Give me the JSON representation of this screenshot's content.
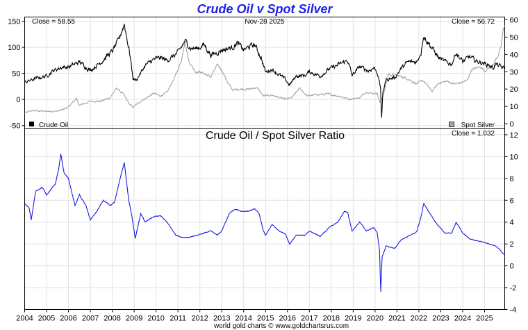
{
  "page": {
    "title": "Crude Oil v Spot Silver",
    "footer": "world gold charts © www.goldchartsrus.com",
    "colors": {
      "title": "#1e22e6",
      "crude": "#000000",
      "silver": "#a5a5a5",
      "ratio": "#1a1ae6"
    }
  },
  "top_panel": {
    "close_left": "Close = 58.55",
    "date": "Nov-28  2025",
    "close_right": "Close = 56.72",
    "legend_left": "Crude Oil",
    "legend_right": "Spot Silver"
  },
  "bottom_panel": {
    "title": "Crude Oil  /  Spot Silver Ratio",
    "close": "Close = 1.032"
  },
  "chart_data": [
    {
      "type": "line",
      "title": "Crude Oil v Spot Silver",
      "x_range": [
        2004.0,
        2025.92
      ],
      "x_ticks": [
        "2004",
        "2005",
        "2006",
        "2007",
        "2008",
        "2009",
        "2010",
        "2011",
        "2012",
        "2013",
        "2014",
        "2015",
        "2016",
        "2017",
        "2018",
        "2019",
        "2020",
        "2021",
        "2022",
        "2023",
        "2024",
        "2025"
      ],
      "y_left": {
        "label": "Crude Oil",
        "ylim": [
          -55,
          158
        ],
        "ticks": [
          "150",
          "100",
          "50",
          "0",
          "-50"
        ]
      },
      "y_right": {
        "label": "Spot Silver",
        "ylim": [
          -2.6,
          61.6
        ],
        "ticks": [
          "60",
          "50",
          "40",
          "30",
          "20",
          "10",
          "0"
        ]
      },
      "series": [
        {
          "name": "Crude Oil",
          "axis": "left",
          "points": [
            [
              2004.0,
              33
            ],
            [
              2004.5,
              40
            ],
            [
              2005.0,
              45
            ],
            [
              2005.3,
              55
            ],
            [
              2005.7,
              62
            ],
            [
              2006.0,
              62
            ],
            [
              2006.5,
              72
            ],
            [
              2007.0,
              56
            ],
            [
              2007.5,
              72
            ],
            [
              2007.8,
              85
            ],
            [
              2008.0,
              92
            ],
            [
              2008.3,
              115
            ],
            [
              2008.55,
              145
            ],
            [
              2008.8,
              88
            ],
            [
              2008.95,
              40
            ],
            [
              2009.1,
              37
            ],
            [
              2009.5,
              65
            ],
            [
              2009.9,
              77
            ],
            [
              2010.2,
              80
            ],
            [
              2010.5,
              75
            ],
            [
              2010.8,
              83
            ],
            [
              2011.0,
              90
            ],
            [
              2011.33,
              112
            ],
            [
              2011.6,
              98
            ],
            [
              2011.9,
              98
            ],
            [
              2012.2,
              105
            ],
            [
              2012.5,
              85
            ],
            [
              2012.8,
              90
            ],
            [
              2013.0,
              95
            ],
            [
              2013.5,
              100
            ],
            [
              2013.7,
              108
            ],
            [
              2014.0,
              95
            ],
            [
              2014.3,
              102
            ],
            [
              2014.5,
              105
            ],
            [
              2014.8,
              80
            ],
            [
              2015.0,
              52
            ],
            [
              2015.3,
              58
            ],
            [
              2015.6,
              48
            ],
            [
              2015.9,
              38
            ],
            [
              2016.1,
              28
            ],
            [
              2016.4,
              45
            ],
            [
              2016.8,
              46
            ],
            [
              2017.0,
              53
            ],
            [
              2017.5,
              45
            ],
            [
              2017.9,
              58
            ],
            [
              2018.3,
              66
            ],
            [
              2018.75,
              75
            ],
            [
              2018.95,
              46
            ],
            [
              2019.3,
              63
            ],
            [
              2019.7,
              55
            ],
            [
              2019.95,
              61
            ],
            [
              2020.1,
              52
            ],
            [
              2020.25,
              22
            ],
            [
              2020.3,
              -37
            ],
            [
              2020.36,
              15
            ],
            [
              2020.5,
              38
            ],
            [
              2020.9,
              42
            ],
            [
              2021.2,
              60
            ],
            [
              2021.5,
              72
            ],
            [
              2021.9,
              72
            ],
            [
              2022.1,
              90
            ],
            [
              2022.2,
              122
            ],
            [
              2022.5,
              105
            ],
            [
              2022.9,
              80
            ],
            [
              2023.2,
              72
            ],
            [
              2023.5,
              68
            ],
            [
              2023.7,
              90
            ],
            [
              2024.0,
              72
            ],
            [
              2024.3,
              82
            ],
            [
              2024.6,
              74
            ],
            [
              2024.9,
              70
            ],
            [
              2025.2,
              66
            ],
            [
              2025.4,
              60
            ],
            [
              2025.5,
              68
            ],
            [
              2025.92,
              58.55
            ]
          ]
        },
        {
          "name": "Spot Silver",
          "axis": "right",
          "points": [
            [
              2004.0,
              6
            ],
            [
              2004.3,
              7.5
            ],
            [
              2004.8,
              7.2
            ],
            [
              2005.5,
              7.2
            ],
            [
              2005.95,
              9
            ],
            [
              2006.35,
              14.5
            ],
            [
              2006.5,
              10.5
            ],
            [
              2007.0,
              13
            ],
            [
              2007.5,
              13
            ],
            [
              2007.9,
              15
            ],
            [
              2008.2,
              20.5
            ],
            [
              2008.5,
              17
            ],
            [
              2008.8,
              11
            ],
            [
              2008.95,
              9.5
            ],
            [
              2009.3,
              13
            ],
            [
              2009.9,
              17.5
            ],
            [
              2010.2,
              16
            ],
            [
              2010.5,
              18
            ],
            [
              2010.9,
              28
            ],
            [
              2011.15,
              36
            ],
            [
              2011.32,
              48
            ],
            [
              2011.5,
              36
            ],
            [
              2011.8,
              30
            ],
            [
              2012.0,
              30
            ],
            [
              2012.5,
              27
            ],
            [
              2012.8,
              34
            ],
            [
              2013.0,
              31
            ],
            [
              2013.3,
              23
            ],
            [
              2013.5,
              19.5
            ],
            [
              2013.9,
              20
            ],
            [
              2014.3,
              20
            ],
            [
              2014.6,
              21
            ],
            [
              2014.9,
              16
            ],
            [
              2015.3,
              16.5
            ],
            [
              2015.9,
              14
            ],
            [
              2016.2,
              15
            ],
            [
              2016.55,
              20.5
            ],
            [
              2016.9,
              16
            ],
            [
              2017.5,
              17
            ],
            [
              2017.9,
              17
            ],
            [
              2018.5,
              15.5
            ],
            [
              2018.8,
              14.2
            ],
            [
              2019.3,
              15
            ],
            [
              2019.6,
              18.5
            ],
            [
              2019.9,
              17.5
            ],
            [
              2020.1,
              17.8
            ],
            [
              2020.22,
              12
            ],
            [
              2020.4,
              17.5
            ],
            [
              2020.6,
              28.5
            ],
            [
              2021.1,
              27.5
            ],
            [
              2021.5,
              26
            ],
            [
              2021.9,
              23
            ],
            [
              2022.2,
              25
            ],
            [
              2022.6,
              18.5
            ],
            [
              2022.9,
              23.5
            ],
            [
              2023.3,
              24.5
            ],
            [
              2023.6,
              23
            ],
            [
              2023.9,
              23.5
            ],
            [
              2024.2,
              25
            ],
            [
              2024.4,
              31
            ],
            [
              2024.8,
              33
            ],
            [
              2025.0,
              30.5
            ],
            [
              2025.3,
              33
            ],
            [
              2025.6,
              38
            ],
            [
              2025.75,
              45
            ],
            [
              2025.85,
              54
            ],
            [
              2025.92,
              56.72
            ]
          ]
        }
      ]
    },
    {
      "type": "line",
      "title": "Crude Oil  /  Spot Silver Ratio",
      "x_range": [
        2004.0,
        2025.92
      ],
      "y_right": {
        "ylim": [
          -4,
          12.6
        ],
        "ticks": [
          "12",
          "10",
          "8",
          "6",
          "4",
          "2",
          "0",
          "-2",
          "-4"
        ]
      },
      "series": [
        {
          "name": "Crude Oil / Spot Silver Ratio",
          "points": [
            [
              2004.0,
              5.7
            ],
            [
              2004.2,
              5.3
            ],
            [
              2004.3,
              4.2
            ],
            [
              2004.5,
              6.8
            ],
            [
              2004.8,
              7.2
            ],
            [
              2005.0,
              6.5
            ],
            [
              2005.2,
              7.0
            ],
            [
              2005.4,
              7.5
            ],
            [
              2005.55,
              8.8
            ],
            [
              2005.65,
              10.2
            ],
            [
              2005.8,
              8.5
            ],
            [
              2006.0,
              8.0
            ],
            [
              2006.3,
              5.5
            ],
            [
              2006.5,
              6.5
            ],
            [
              2006.8,
              5.5
            ],
            [
              2007.0,
              4.2
            ],
            [
              2007.3,
              5.0
            ],
            [
              2007.6,
              6.0
            ],
            [
              2007.9,
              5.5
            ],
            [
              2008.1,
              5.8
            ],
            [
              2008.3,
              7.5
            ],
            [
              2008.55,
              9.5
            ],
            [
              2008.75,
              6.0
            ],
            [
              2008.9,
              4.5
            ],
            [
              2009.05,
              2.5
            ],
            [
              2009.3,
              4.8
            ],
            [
              2009.5,
              4.0
            ],
            [
              2009.9,
              4.5
            ],
            [
              2010.2,
              4.6
            ],
            [
              2010.5,
              4.0
            ],
            [
              2010.9,
              2.8
            ],
            [
              2011.2,
              2.6
            ],
            [
              2011.5,
              2.6
            ],
            [
              2011.9,
              2.8
            ],
            [
              2012.2,
              3.0
            ],
            [
              2012.5,
              3.2
            ],
            [
              2012.8,
              2.8
            ],
            [
              2013.0,
              3.2
            ],
            [
              2013.35,
              4.8
            ],
            [
              2013.6,
              5.2
            ],
            [
              2013.9,
              5.0
            ],
            [
              2014.2,
              5.0
            ],
            [
              2014.5,
              5.2
            ],
            [
              2014.7,
              4.8
            ],
            [
              2014.9,
              3.2
            ],
            [
              2015.0,
              2.8
            ],
            [
              2015.3,
              3.8
            ],
            [
              2015.6,
              3.2
            ],
            [
              2015.9,
              2.9
            ],
            [
              2016.1,
              2.0
            ],
            [
              2016.4,
              2.8
            ],
            [
              2016.8,
              2.8
            ],
            [
              2017.0,
              3.2
            ],
            [
              2017.5,
              2.7
            ],
            [
              2017.9,
              3.5
            ],
            [
              2018.3,
              4.0
            ],
            [
              2018.6,
              5.0
            ],
            [
              2018.75,
              4.9
            ],
            [
              2018.95,
              3.2
            ],
            [
              2019.3,
              4.0
            ],
            [
              2019.6,
              3.2
            ],
            [
              2019.95,
              3.5
            ],
            [
              2020.1,
              3.0
            ],
            [
              2020.2,
              1.5
            ],
            [
              2020.26,
              -2.4
            ],
            [
              2020.32,
              0.8
            ],
            [
              2020.5,
              1.8
            ],
            [
              2020.9,
              1.6
            ],
            [
              2021.2,
              2.4
            ],
            [
              2021.6,
              2.8
            ],
            [
              2021.9,
              3.1
            ],
            [
              2022.1,
              4.5
            ],
            [
              2022.22,
              5.7
            ],
            [
              2022.5,
              4.8
            ],
            [
              2022.9,
              3.6
            ],
            [
              2023.2,
              3.0
            ],
            [
              2023.5,
              3.0
            ],
            [
              2023.7,
              4.0
            ],
            [
              2024.0,
              3.0
            ],
            [
              2024.3,
              2.5
            ],
            [
              2024.6,
              2.3
            ],
            [
              2024.9,
              2.2
            ],
            [
              2025.2,
              2.0
            ],
            [
              2025.5,
              1.8
            ],
            [
              2025.7,
              1.5
            ],
            [
              2025.8,
              1.2
            ],
            [
              2025.92,
              1.032
            ]
          ]
        }
      ]
    }
  ]
}
